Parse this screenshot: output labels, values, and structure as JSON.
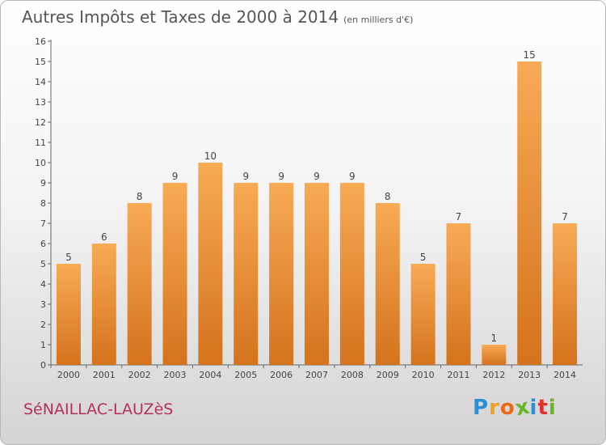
{
  "header": {
    "title": "Autres Impôts et Taxes de 2000 à 2014",
    "unit": "(en milliers d'€)"
  },
  "footer": {
    "place_name": "SéNAILLAC-LAUZèS",
    "brand": {
      "letters": [
        "P",
        "r",
        "o",
        "x",
        "i",
        "t",
        "i"
      ],
      "colors": [
        "#2a8fd6",
        "#f0a020",
        "#ec6a16",
        "#6bb52a",
        "#2a8fd6",
        "#e0302a",
        "#6bb52a"
      ]
    }
  },
  "colors": {
    "bar_top": "#f8aa55",
    "bar_bottom": "#d4731c",
    "accent": "#b5305a"
  },
  "chart_data": {
    "type": "bar",
    "title": "Autres Impôts et Taxes de 2000 à 2014",
    "subtitle": "(en milliers d'€)",
    "categories": [
      "2000",
      "2001",
      "2002",
      "2003",
      "2004",
      "2005",
      "2006",
      "2007",
      "2008",
      "2009",
      "2010",
      "2011",
      "2012",
      "2013",
      "2014"
    ],
    "values": [
      5,
      6,
      8,
      9,
      10,
      9,
      9,
      9,
      9,
      8,
      5,
      7,
      1,
      15,
      7
    ],
    "value_labels": [
      "5",
      "6",
      "8",
      "9",
      "10",
      "9",
      "9",
      "9",
      "9",
      "8",
      "5",
      "7",
      "1",
      "15",
      "7"
    ],
    "y_ticks": [
      "0",
      "1",
      "2",
      "3",
      "4",
      "5",
      "6",
      "7",
      "8",
      "9",
      "10",
      "11",
      "12",
      "13",
      "14",
      "15",
      "16"
    ],
    "ylim": [
      0,
      16
    ],
    "grid": false,
    "legend": "none"
  }
}
